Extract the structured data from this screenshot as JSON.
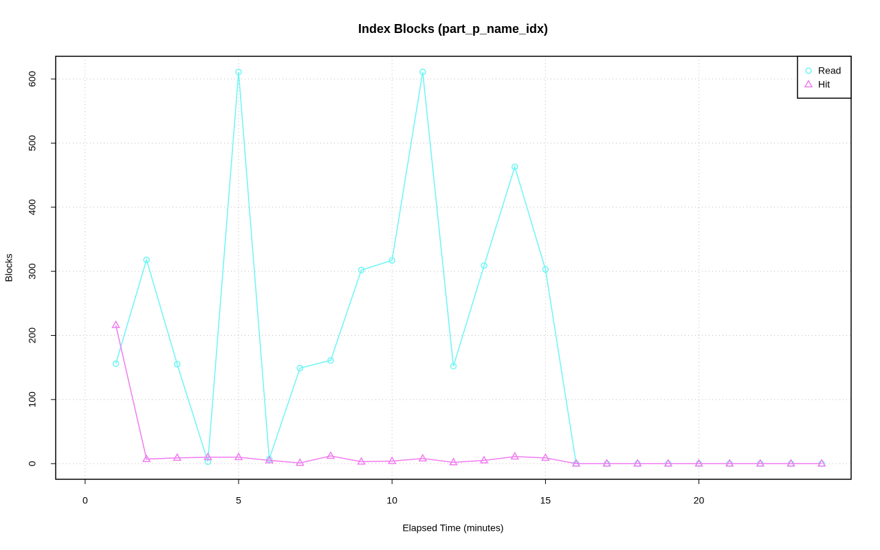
{
  "chart_data": {
    "type": "line",
    "title": "Index Blocks (part_p_name_idx)",
    "x_label": "Elapsed Time (minutes)",
    "y_label": "Blocks",
    "x": [
      1,
      2,
      3,
      4,
      5,
      6,
      7,
      8,
      9,
      10,
      11,
      12,
      13,
      14,
      15,
      16,
      17,
      18,
      19,
      20,
      21,
      22,
      23,
      24
    ],
    "series": [
      {
        "name": "Read",
        "color": "#6ef5f5",
        "marker": "circle",
        "values": [
          156,
          318,
          155,
          3,
          611,
          7,
          149,
          161,
          302,
          317,
          611,
          152,
          309,
          463,
          303,
          0,
          0,
          0,
          0,
          0,
          0,
          0,
          0,
          0
        ]
      },
      {
        "name": "Hit",
        "color": "#f07cf0",
        "marker": "triangle",
        "values": [
          216,
          7,
          9,
          10,
          10,
          5,
          1,
          12,
          3,
          4,
          8,
          2,
          5,
          11,
          9,
          0,
          0,
          0,
          0,
          0,
          0,
          0,
          0,
          0
        ]
      }
    ],
    "xlim": [
      -0.96,
      24.96
    ],
    "xticks": [
      0,
      5,
      10,
      15,
      20
    ],
    "ylim": [
      -24.4,
      635.4
    ],
    "yticks": [
      0,
      100,
      200,
      300,
      400,
      500,
      600
    ],
    "grid": true,
    "legend": "top-right"
  }
}
